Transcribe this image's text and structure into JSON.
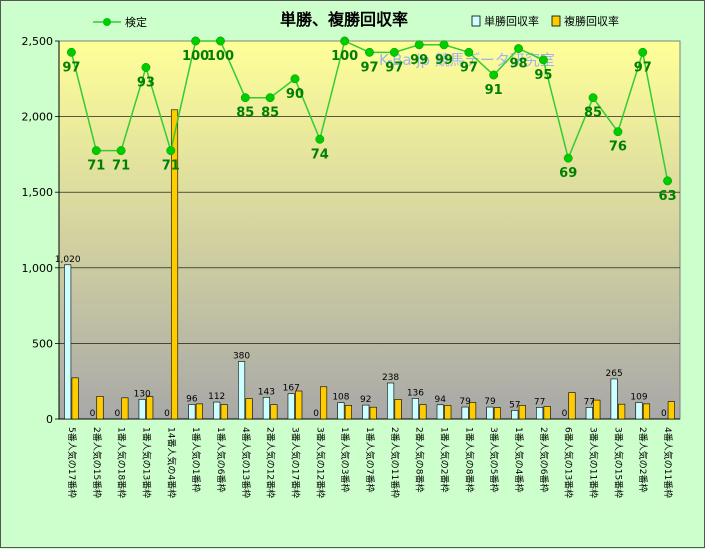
{
  "chart_data": {
    "type": "bar",
    "title": "単勝、複勝回収率",
    "watermark": "K-Ba.jp 競馬データ研究室",
    "ylim": [
      0,
      2500
    ],
    "yticks": [
      0,
      500,
      1000,
      1500,
      2000,
      2500
    ],
    "ytick_labels": [
      "0",
      "500",
      "1,000",
      "1,500",
      "2,000",
      "2,500"
    ],
    "hit_ylim": [
      0,
      100
    ],
    "grid": true,
    "legend_position": "top",
    "colors": {
      "tansho": "#ccffff",
      "fukusho": "#ffcc00",
      "hit_line": "#33cc33",
      "hit_marker": "#00cc00",
      "hit_label": "#008000",
      "plot_top": "#ffff99",
      "plot_bottom": "#a8a8a8"
    },
    "categories": [
      "5番人気の17番枠",
      "2番人気の15番枠",
      "1番人気の18番枠",
      "1番人気の13番枠",
      "14番人気の4番枠",
      "1番人気の1番枠",
      "1番人気の6番枠",
      "4番人気の13番枠",
      "2番人気の12番枠",
      "3番人気の17番枠",
      "3番人気の12番枠",
      "1番人気の3番枠",
      "1番人気の7番枠",
      "2番人気の11番枠",
      "2番人気の8番枠",
      "1番人気の2番枠",
      "1番人気の8番枠",
      "3番人気の5番枠",
      "1番人気の4番枠",
      "2番人気の6番枠",
      "6番人気の13番枠",
      "3番人気の11番枠",
      "3番人気の15番枠",
      "2番人気の2番枠",
      "4番人気の11番枠"
    ],
    "series": [
      {
        "name": "単勝回収率",
        "values": [
          1020,
          0,
          0,
          130,
          0,
          96,
          112,
          380,
          143,
          167,
          0,
          108,
          92,
          238,
          136,
          94,
          79,
          79,
          57,
          77,
          0,
          77,
          265,
          109,
          0
        ],
        "labels": [
          "1,020",
          "0",
          "0",
          "130",
          "0",
          "96",
          "112",
          "380",
          "143",
          "167",
          "0",
          "108",
          "92",
          "238",
          "136",
          "94",
          "79",
          "79",
          "57",
          "77",
          "0",
          "77",
          "265",
          "109",
          "0"
        ]
      },
      {
        "name": "複勝回収率",
        "values": [
          272,
          150,
          140,
          148,
          2045,
          100,
          95,
          135,
          95,
          185,
          213,
          90,
          78,
          130,
          95,
          90,
          110,
          75,
          90,
          83,
          175,
          125,
          98,
          100,
          115
        ]
      },
      {
        "name": "検定",
        "values": [
          97,
          71,
          71,
          93,
          71,
          100,
          100,
          85,
          85,
          90,
          74,
          100,
          97,
          97,
          99,
          99,
          97,
          91,
          98,
          95,
          69,
          85,
          76,
          97,
          63
        ]
      }
    ]
  }
}
